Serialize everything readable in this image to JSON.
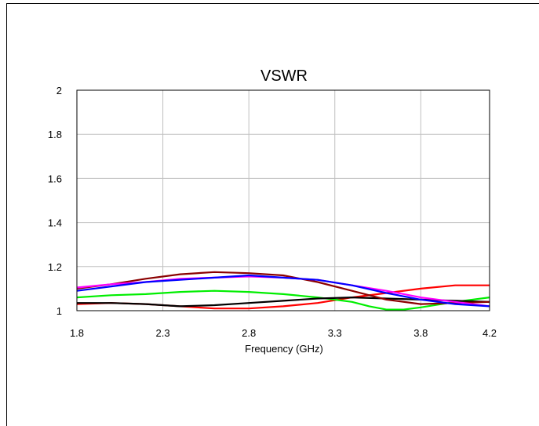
{
  "chart_data": {
    "type": "line",
    "title": "VSWR",
    "xlabel": "Frequency (GHz)",
    "ylabel": "",
    "xlim": [
      1.8,
      4.2
    ],
    "ylim": [
      1,
      2
    ],
    "xticks": [
      "1.8",
      "2.3",
      "2.8",
      "3.3",
      "3.8",
      "4.2"
    ],
    "yticks": [
      "1",
      "1.2",
      "1.4",
      "1.6",
      "1.8",
      "2"
    ],
    "grid": true,
    "series": [
      {
        "color": "#ff0000",
        "x": [
          1.8,
          2.0,
          2.2,
          2.4,
          2.5,
          2.6,
          2.8,
          3.0,
          3.2,
          3.4,
          3.6,
          3.8,
          4.0,
          4.2
        ],
        "y": [
          1.03,
          1.035,
          1.03,
          1.02,
          1.015,
          1.01,
          1.01,
          1.02,
          1.035,
          1.06,
          1.08,
          1.1,
          1.115,
          1.115
        ]
      },
      {
        "color": "#00ee00",
        "x": [
          1.8,
          2.0,
          2.2,
          2.4,
          2.6,
          2.8,
          3.0,
          3.2,
          3.4,
          3.5,
          3.6,
          3.7,
          3.8,
          4.0,
          4.2
        ],
        "y": [
          1.06,
          1.07,
          1.075,
          1.085,
          1.09,
          1.085,
          1.075,
          1.06,
          1.04,
          1.02,
          1.005,
          1.005,
          1.015,
          1.04,
          1.06
        ]
      },
      {
        "color": "#000000",
        "x": [
          1.8,
          2.0,
          2.2,
          2.4,
          2.6,
          2.8,
          3.0,
          3.2,
          3.4,
          3.6,
          3.8,
          4.0,
          4.2
        ],
        "y": [
          1.035,
          1.035,
          1.03,
          1.02,
          1.025,
          1.035,
          1.045,
          1.055,
          1.06,
          1.055,
          1.05,
          1.045,
          1.04
        ]
      },
      {
        "color": "#8b0000",
        "x": [
          1.8,
          2.0,
          2.2,
          2.4,
          2.6,
          2.8,
          3.0,
          3.2,
          3.4,
          3.6,
          3.8,
          4.0,
          4.2
        ],
        "y": [
          1.1,
          1.12,
          1.145,
          1.165,
          1.175,
          1.17,
          1.16,
          1.13,
          1.09,
          1.05,
          1.03,
          1.035,
          1.04
        ]
      },
      {
        "color": "#ff00ff",
        "x": [
          1.8,
          2.0,
          2.2,
          2.4,
          2.6,
          2.8,
          3.0,
          3.2,
          3.4,
          3.6,
          3.8,
          4.0,
          4.2
        ],
        "y": [
          1.105,
          1.12,
          1.13,
          1.145,
          1.15,
          1.155,
          1.15,
          1.14,
          1.115,
          1.09,
          1.06,
          1.04,
          1.02
        ]
      },
      {
        "color": "#0000ff",
        "x": [
          1.8,
          2.0,
          2.2,
          2.4,
          2.6,
          2.8,
          3.0,
          3.2,
          3.4,
          3.6,
          3.8,
          4.0,
          4.2
        ],
        "y": [
          1.09,
          1.11,
          1.13,
          1.14,
          1.15,
          1.16,
          1.15,
          1.14,
          1.115,
          1.08,
          1.05,
          1.03,
          1.02
        ]
      }
    ]
  }
}
